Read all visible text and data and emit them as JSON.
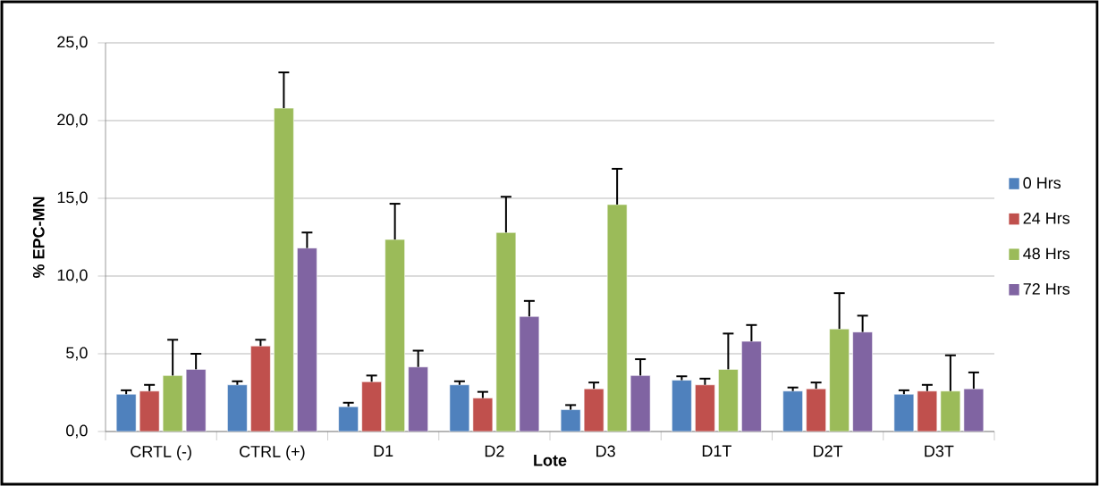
{
  "chart_data": {
    "type": "bar",
    "xlabel": "Lote",
    "ylabel": "% EPC-MN",
    "categories": [
      "CRTL (-)",
      "CTRL (+)",
      "D1",
      "D2",
      "D3",
      "D1T",
      "D2T",
      "D3T"
    ],
    "series": [
      {
        "name": "0 Hrs",
        "color": "#4f81bd",
        "values": [
          2.4,
          3.0,
          1.6,
          3.0,
          1.4,
          3.3,
          2.6,
          2.4
        ],
        "errors": [
          [
            2.4,
            2.65
          ],
          [
            3.0,
            3.23
          ],
          [
            1.6,
            1.85
          ],
          [
            3.0,
            3.23
          ],
          [
            1.4,
            1.7
          ],
          [
            3.3,
            3.55
          ],
          [
            2.6,
            2.83
          ],
          [
            2.4,
            2.65
          ]
        ]
      },
      {
        "name": "24 Hrs",
        "color": "#c0504d",
        "values": [
          2.6,
          5.5,
          3.2,
          2.15,
          2.75,
          3.0,
          2.75,
          2.6
        ],
        "errors": [
          [
            2.6,
            3.0
          ],
          [
            5.5,
            5.9
          ],
          [
            3.2,
            3.6
          ],
          [
            2.15,
            2.55
          ],
          [
            2.75,
            3.15
          ],
          [
            3.0,
            3.4
          ],
          [
            2.75,
            3.15
          ],
          [
            2.6,
            3.0
          ]
        ]
      },
      {
        "name": "48 Hrs",
        "color": "#9bbb59",
        "values": [
          3.6,
          20.8,
          12.35,
          12.8,
          14.6,
          4.0,
          6.6,
          2.6
        ],
        "errors": [
          [
            3.6,
            5.9
          ],
          [
            20.8,
            23.1
          ],
          [
            12.35,
            14.65
          ],
          [
            12.8,
            15.1
          ],
          [
            14.6,
            16.9
          ],
          [
            4.0,
            6.3
          ],
          [
            6.6,
            8.9
          ],
          [
            2.6,
            4.9
          ]
        ]
      },
      {
        "name": "72 Hrs",
        "color": "#8064a2",
        "values": [
          4.0,
          11.8,
          4.15,
          7.4,
          3.6,
          5.8,
          6.4,
          2.75
        ],
        "errors": [
          [
            4.0,
            5.0
          ],
          [
            11.8,
            12.8
          ],
          [
            4.15,
            5.2
          ],
          [
            7.4,
            8.4
          ],
          [
            3.6,
            4.65
          ],
          [
            5.8,
            6.85
          ],
          [
            6.4,
            7.45
          ],
          [
            2.75,
            3.8
          ]
        ]
      }
    ],
    "ylim": [
      0,
      25
    ],
    "yticks": [
      {
        "value": 0,
        "label": "0,0"
      },
      {
        "value": 5,
        "label": "5,0"
      },
      {
        "value": 10,
        "label": "10,0"
      },
      {
        "value": 15,
        "label": "15,0"
      },
      {
        "value": 20,
        "label": "20,0"
      },
      {
        "value": 25,
        "label": "25,0"
      }
    ],
    "grid": "y",
    "legend": "right"
  }
}
